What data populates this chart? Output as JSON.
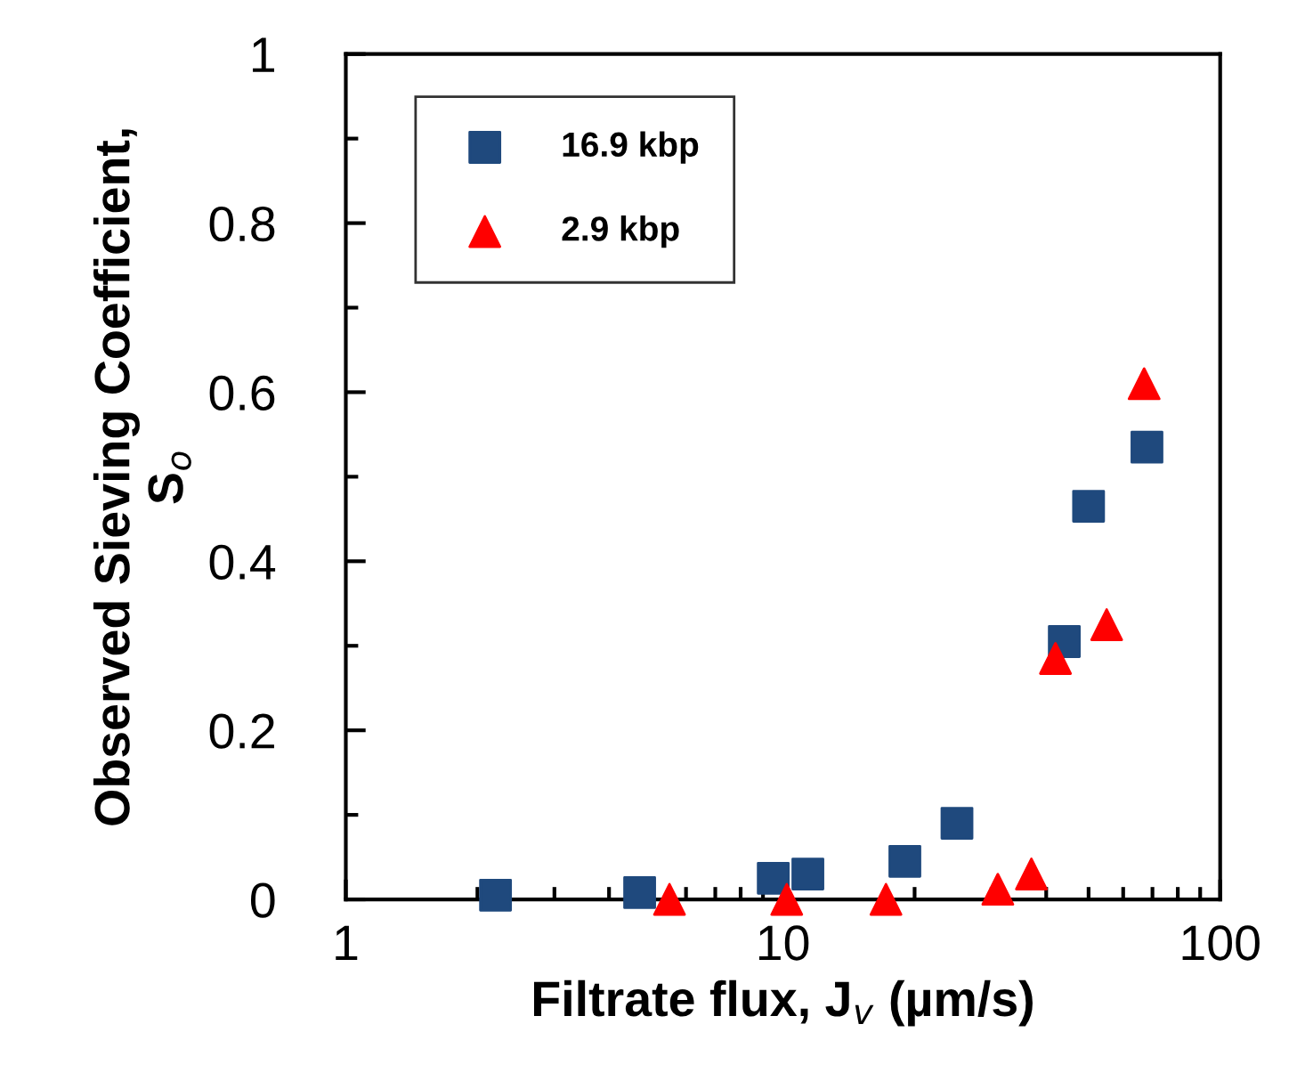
{
  "chart_data": {
    "type": "scatter",
    "xlabel": "Filtrate flux, J$_{v}$ (µm/s)",
    "ylabel": "Observed Sieving Coefficient,\nS$_{o}$",
    "log": "x",
    "xlim": [
      1,
      100
    ],
    "xticks": [
      1,
      10,
      100
    ],
    "ylim": [
      0,
      1
    ],
    "yticks": [
      0,
      0.2,
      0.4,
      0.6,
      0.8,
      1
    ],
    "grid": false,
    "legend": "top left",
    "series": [
      {
        "name": "16.9 kbp",
        "color": "#1f497d",
        "marker": "square",
        "x": [
          2.2,
          4.7,
          9.5,
          11.4,
          19,
          25,
          44,
          50,
          68
        ],
        "values": [
          0.005,
          0.008,
          0.025,
          0.03,
          0.045,
          0.09,
          0.305,
          0.465,
          0.535
        ]
      },
      {
        "name": "2.9 kbp",
        "color": "#ff0000",
        "marker": "triangle",
        "x": [
          5.5,
          10.2,
          17.2,
          31,
          37,
          42,
          55,
          67
        ],
        "values": [
          0,
          0,
          0,
          0.012,
          0.03,
          0.285,
          0.325,
          0.61
        ]
      }
    ]
  }
}
